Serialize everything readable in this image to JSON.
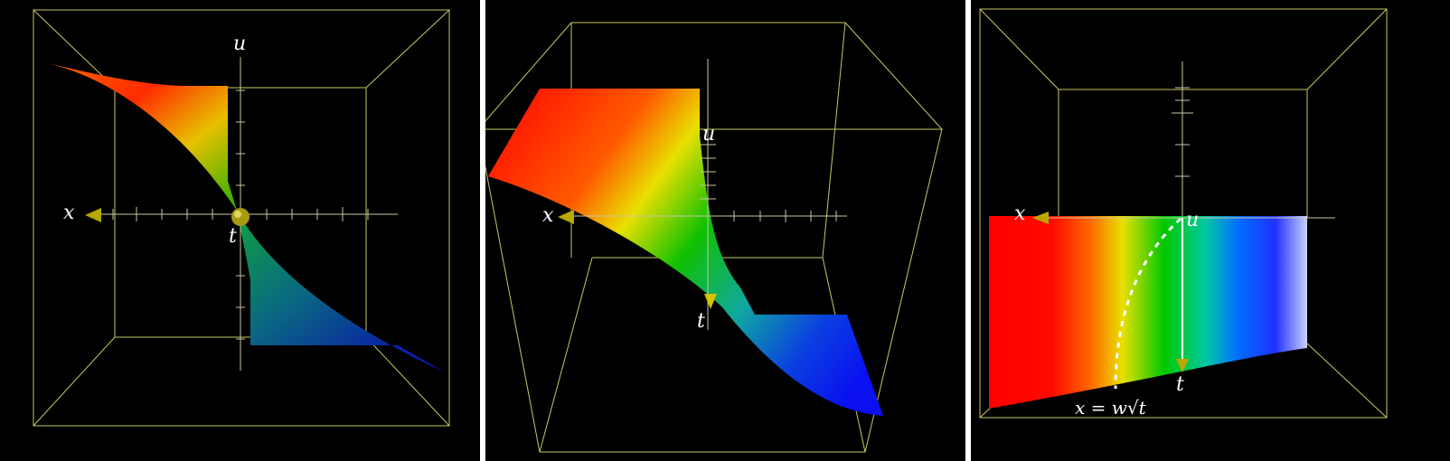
{
  "panels": [
    {
      "name": "view-top",
      "labels": {
        "u": "u",
        "x": "x",
        "t": "t"
      }
    },
    {
      "name": "view-oblique",
      "labels": {
        "u": "u",
        "x": "x",
        "t": "t"
      }
    },
    {
      "name": "view-front",
      "labels": {
        "u": "u",
        "x": "x",
        "t": "t"
      },
      "annotation": "x = w√t"
    }
  ],
  "colors": {
    "background": "#000000",
    "box": "#c8c864",
    "axis": "#c8c8a0",
    "arrowhead": "#b8a800",
    "label": "#ffffff",
    "dashed_curve": "#ffffff"
  },
  "icons": {
    "axis_arrow": "cone-arrowhead-icon",
    "origin_marker": "sphere-icon"
  }
}
